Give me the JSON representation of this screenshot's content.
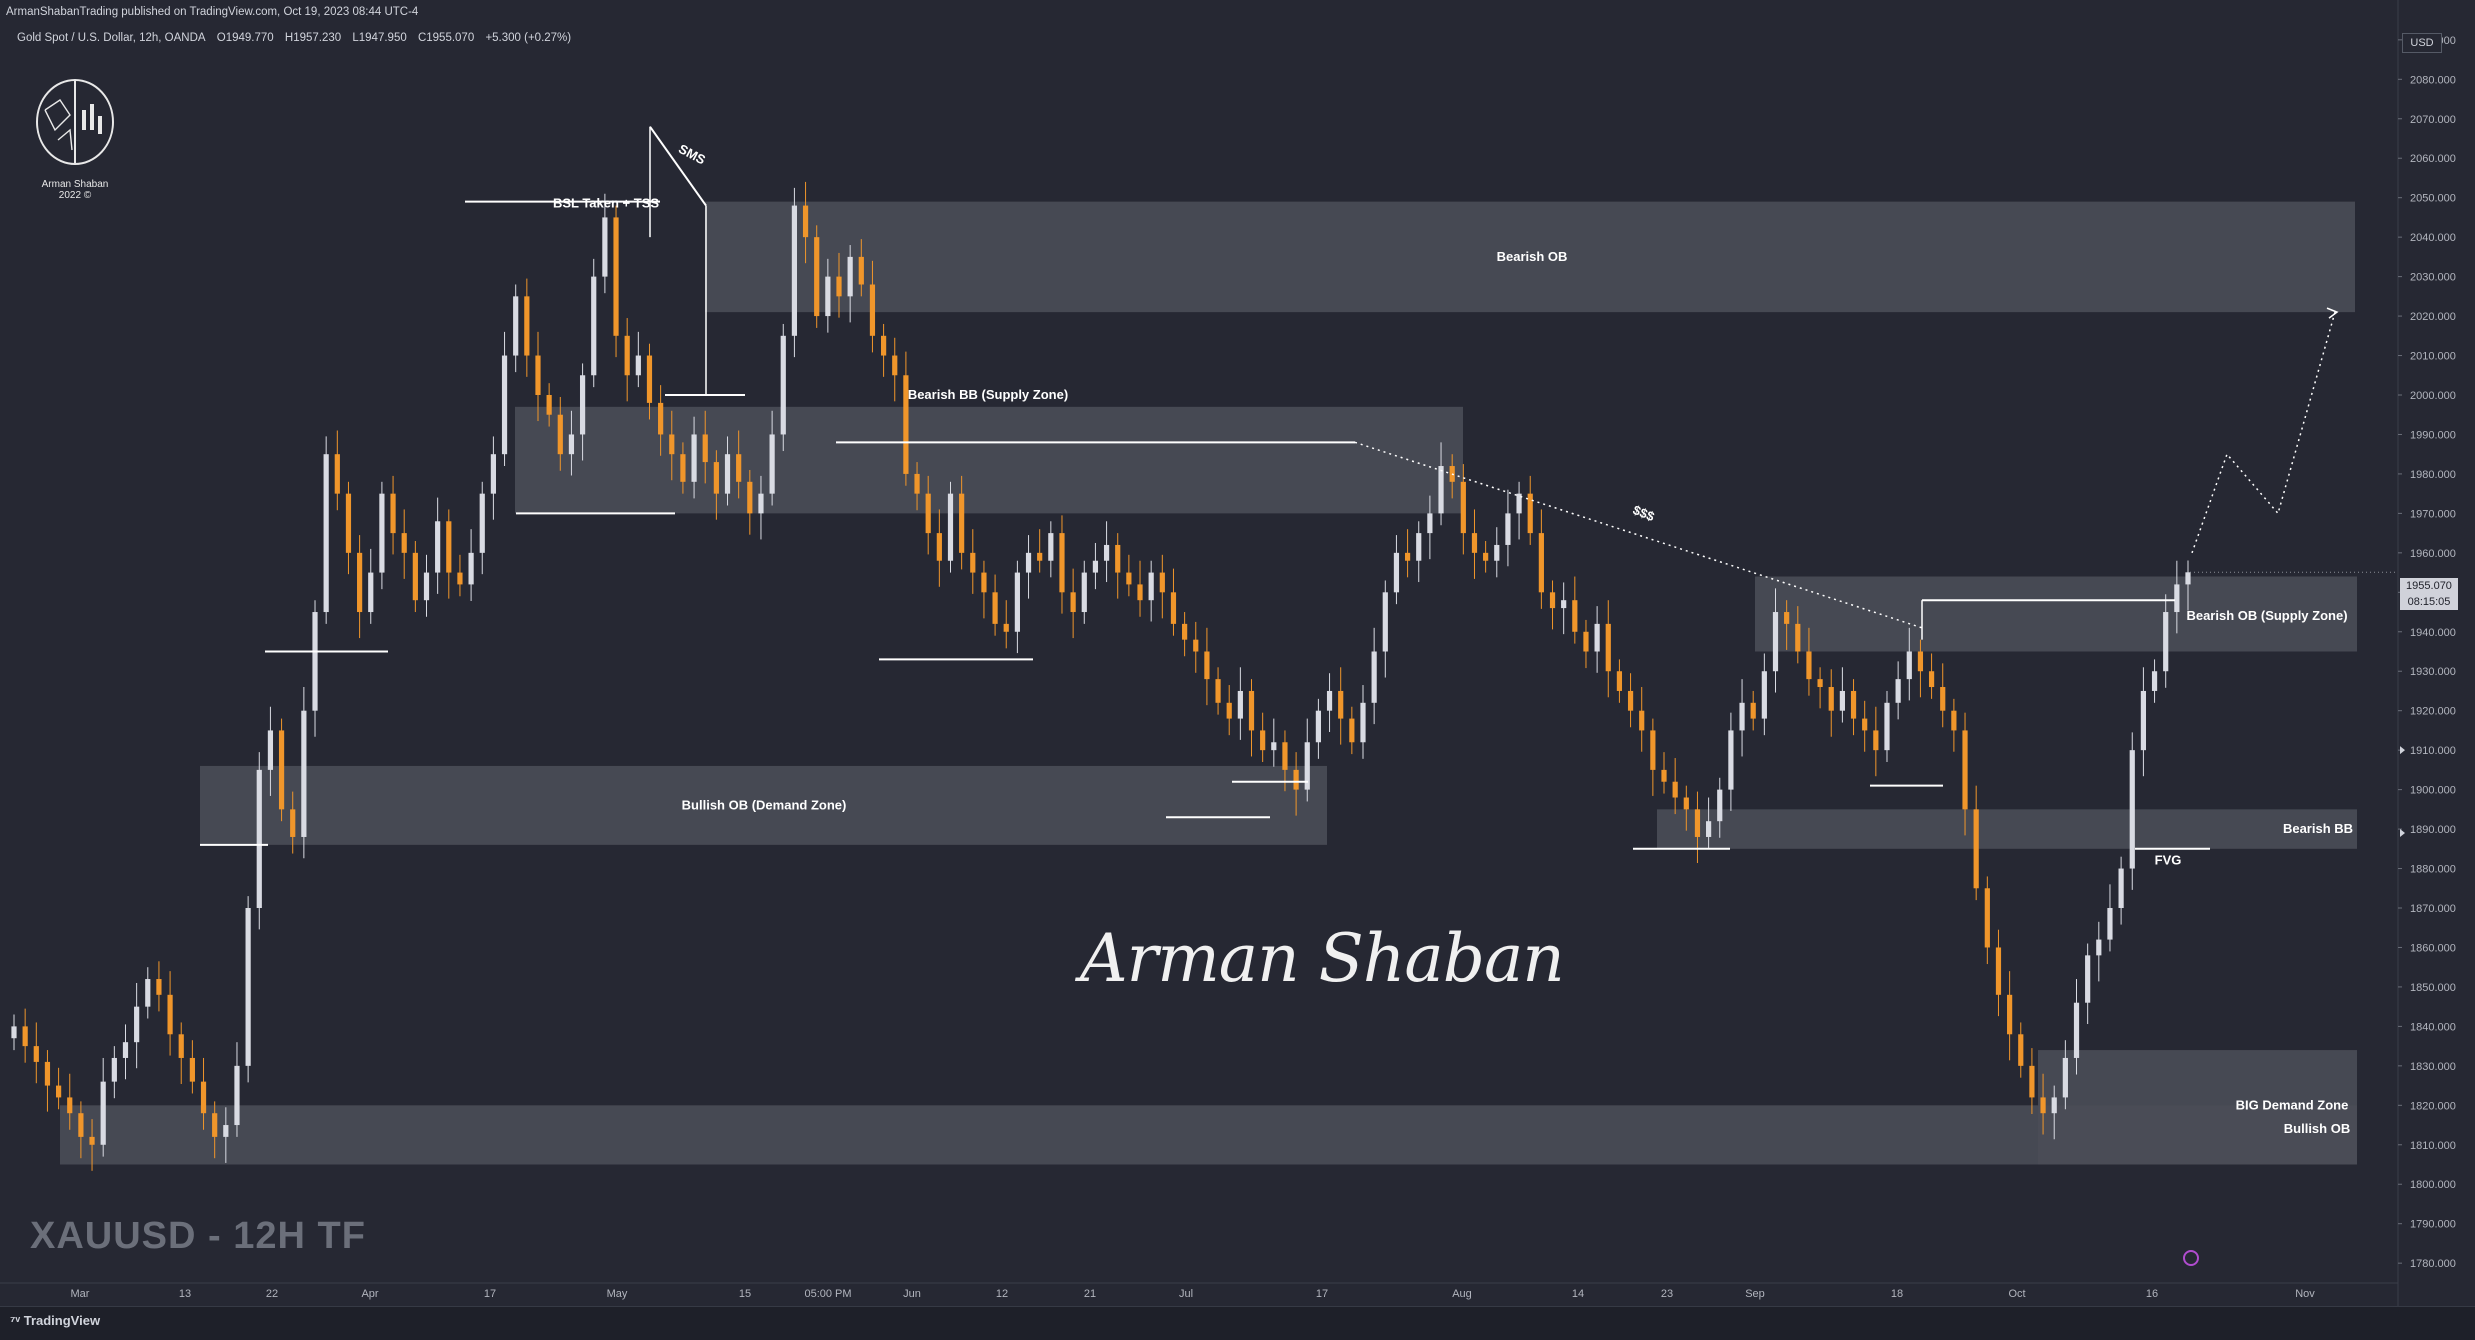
{
  "header": {
    "publisher": "ArmanShabanTrading published on TradingView.com, Oct 19, 2023 08:44 UTC-4"
  },
  "symbol": {
    "name": "Gold Spot / U.S. Dollar, 12h, OANDA",
    "open": "O1949.770",
    "high": "H1957.230",
    "low": "L1947.950",
    "close": "C1955.070",
    "change": "+5.300 (+0.27%)"
  },
  "logo": {
    "name": "Arman Shaban",
    "year": "2022 ©"
  },
  "watermark": {
    "title": "XAUUSD - 12H TF",
    "signature": "Arman Shaban"
  },
  "price_axis": {
    "currency": "USD",
    "current_price": "1955.070",
    "countdown": "08:15:05"
  },
  "footer": {
    "brand": "TradingView"
  },
  "colors": {
    "background": "#262833",
    "bull_candle": "#d9dbe3",
    "bear_candle": "#f0962b",
    "zone": "#4a4c56"
  },
  "chart_data": {
    "type": "candlestick",
    "y_ticks": [
      1780,
      1790,
      1800,
      1810,
      1820,
      1830,
      1840,
      1850,
      1860,
      1870,
      1880,
      1890,
      1900,
      1910,
      1920,
      1930,
      1940,
      1950,
      1960,
      1970,
      1980,
      1990,
      2000,
      2010,
      2020,
      2030,
      2040,
      2050,
      2060,
      2070,
      2080,
      2090
    ],
    "y_tick_format": "0.000",
    "ylim": [
      1777,
      2093
    ],
    "x_ticks": [
      "Mar",
      "13",
      "22",
      "Apr",
      "17",
      "May",
      "15",
      "05:00 PM",
      "Jun",
      "12",
      "21",
      "Jul",
      "17",
      "Aug",
      "14",
      "23",
      "Sep",
      "18",
      "Oct",
      "16",
      "Nov"
    ],
    "closes": [
      1840,
      1835,
      1831,
      1825,
      1822,
      1818,
      1812,
      1810,
      1826,
      1832,
      1836,
      1845,
      1852,
      1848,
      1838,
      1832,
      1826,
      1818,
      1812,
      1815,
      1830,
      1870,
      1905,
      1915,
      1895,
      1888,
      1920,
      1945,
      1985,
      1975,
      1960,
      1945,
      1955,
      1975,
      1965,
      1960,
      1948,
      1955,
      1968,
      1955,
      1952,
      1960,
      1975,
      1985,
      2010,
      2025,
      2010,
      2000,
      1995,
      1985,
      1990,
      2005,
      2030,
      2045,
      2015,
      2005,
      2010,
      1998,
      1990,
      1985,
      1978,
      1990,
      1983,
      1975,
      1985,
      1978,
      1970,
      1975,
      1990,
      2015,
      2048,
      2040,
      2020,
      2030,
      2025,
      2035,
      2028,
      2015,
      2010,
      2005,
      1980,
      1975,
      1965,
      1958,
      1975,
      1960,
      1955,
      1950,
      1942,
      1940,
      1955,
      1960,
      1958,
      1965,
      1950,
      1945,
      1955,
      1958,
      1962,
      1955,
      1952,
      1948,
      1955,
      1950,
      1942,
      1938,
      1935,
      1928,
      1922,
      1918,
      1925,
      1915,
      1910,
      1912,
      1905,
      1900,
      1912,
      1920,
      1925,
      1918,
      1912,
      1922,
      1935,
      1950,
      1960,
      1958,
      1965,
      1970,
      1982,
      1978,
      1965,
      1960,
      1958,
      1962,
      1970,
      1975,
      1965,
      1950,
      1946,
      1948,
      1940,
      1935,
      1942,
      1930,
      1925,
      1920,
      1915,
      1905,
      1902,
      1898,
      1895,
      1888,
      1892,
      1900,
      1915,
      1922,
      1918,
      1930,
      1945,
      1942,
      1935,
      1928,
      1926,
      1920,
      1925,
      1918,
      1915,
      1910,
      1922,
      1928,
      1935,
      1930,
      1926,
      1920,
      1915,
      1895,
      1875,
      1860,
      1848,
      1838,
      1830,
      1822,
      1818,
      1822,
      1832,
      1846,
      1858,
      1862,
      1870,
      1880,
      1910,
      1925,
      1930,
      1945,
      1952,
      1955.07
    ],
    "annotations": [
      "BSL Taken + TSS",
      "SMS",
      "Bearish OB",
      "Bearish BB (Supply Zone)",
      "$$$",
      "Bullish OB (Demand Zone)",
      "Bearish OB (Supply Zone)",
      "Bearish BB",
      "FVG",
      "BIG Demand Zone",
      "Bullish OB"
    ],
    "zones": [
      {
        "label": "Bearish OB",
        "from": 2021,
        "to": 2049
      },
      {
        "label": "Bearish BB (Supply Zone)",
        "from": 1970,
        "to": 1997
      },
      {
        "label": "Bullish OB (Demand Zone)",
        "from": 1886,
        "to": 1906
      },
      {
        "label": "Bearish OB (Supply Zone)",
        "from": 1935,
        "to": 1954
      },
      {
        "label": "Bearish BB",
        "from": 1885,
        "to": 1895
      },
      {
        "label": "BIG Demand Zone",
        "from": 1805,
        "to": 1834
      },
      {
        "label": "Bullish OB",
        "from": 1805,
        "to": 1820
      }
    ],
    "projection": [
      1960,
      1985,
      1970,
      2021
    ]
  }
}
